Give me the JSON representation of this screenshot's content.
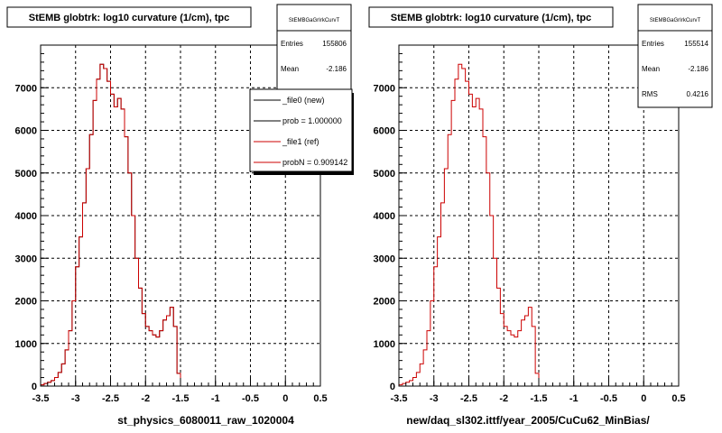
{
  "footer_text": "",
  "chart_data": [
    {
      "type": "histogram",
      "title": "StEMB globtrk: log10 curvature (1/cm), tpc",
      "xlabel": "st_physics_6080011_raw_1020004",
      "xlim": [
        -3.5,
        0.5
      ],
      "ylim": [
        0,
        8000
      ],
      "x_ticks": [
        -3.5,
        -3,
        -2.5,
        -2,
        -1.5,
        -1,
        -0.5,
        0,
        0.5
      ],
      "y_ticks": [
        0,
        1000,
        2000,
        3000,
        4000,
        5000,
        6000,
        7000
      ],
      "grid": true,
      "bin_start": -3.5,
      "bin_width": 0.05,
      "stats_box": {
        "name": "StEMBGaGrIrkCurvT",
        "rows": [
          {
            "label": "Entries",
            "value": "155806"
          },
          {
            "label": "Mean",
            "value": "-2.186"
          }
        ]
      },
      "legend": {
        "placement": "top-right",
        "entries": [
          {
            "label": "_file0 (new)",
            "color": "#000000"
          },
          {
            "label": "prob = 1.000000",
            "color": "#000000"
          },
          {
            "label": "_file1 (ref)",
            "color": "#cc0000"
          },
          {
            "label": "probN = 0.909142",
            "color": "#cc0000"
          }
        ]
      },
      "series": [
        {
          "name": "_file0 (new)",
          "color": "#000000",
          "values": [
            30,
            60,
            90,
            130,
            200,
            320,
            520,
            850,
            1300,
            2000,
            2800,
            3500,
            4300,
            5100,
            5900,
            6700,
            7200,
            7550,
            7450,
            7150,
            6850,
            6550,
            6750,
            6500,
            5850,
            5000,
            4000,
            3000,
            2300,
            1700,
            1400,
            1300,
            1200,
            1150,
            1300,
            1550,
            1650,
            1850,
            1400,
            300,
            0,
            0,
            0,
            0,
            0,
            0,
            0,
            0,
            0,
            0,
            0,
            0,
            0,
            0,
            0,
            0,
            0,
            0,
            0,
            0,
            0,
            0,
            0,
            0,
            0,
            0,
            0,
            0,
            0,
            0,
            0,
            0,
            0,
            0,
            0,
            0,
            0,
            0,
            0,
            0
          ]
        },
        {
          "name": "_file1 (ref)",
          "color": "#cc0000",
          "values": [
            30,
            60,
            90,
            130,
            200,
            320,
            520,
            850,
            1300,
            2000,
            2800,
            3500,
            4300,
            5100,
            5900,
            6700,
            7200,
            7550,
            7450,
            7150,
            6850,
            6550,
            6750,
            6500,
            5850,
            5000,
            4000,
            3000,
            2300,
            1700,
            1400,
            1300,
            1200,
            1150,
            1300,
            1550,
            1650,
            1850,
            1400,
            300,
            0,
            0,
            0,
            0,
            0,
            0,
            0,
            0,
            0,
            0,
            0,
            0,
            0,
            0,
            0,
            0,
            0,
            0,
            0,
            0,
            0,
            0,
            0,
            0,
            0,
            0,
            0,
            0,
            0,
            0,
            0,
            0,
            0,
            0,
            0,
            0,
            0,
            0,
            0,
            0
          ]
        }
      ]
    },
    {
      "type": "histogram",
      "title": "StEMB globtrk: log10 curvature (1/cm), tpc",
      "xlabel": "new/daq_sl302.ittf/year_2005/CuCu62_MinBias/",
      "xlim": [
        -3.5,
        0.5
      ],
      "ylim": [
        0,
        8000
      ],
      "x_ticks": [
        -3.5,
        -3,
        -2.5,
        -2,
        -1.5,
        -1,
        -0.5,
        0,
        0.5
      ],
      "y_ticks": [
        0,
        1000,
        2000,
        3000,
        4000,
        5000,
        6000,
        7000
      ],
      "grid": true,
      "bin_start": -3.5,
      "bin_width": 0.05,
      "stats_box": {
        "name": "StEMBGaGrIrkCurvT",
        "rows": [
          {
            "label": "Entries",
            "value": "155514"
          },
          {
            "label": "Mean",
            "value": "-2.186"
          },
          {
            "label": "RMS",
            "value": "0.4216"
          }
        ]
      },
      "series": [
        {
          "name": "_file1 (ref)",
          "color": "#cc0000",
          "values": [
            30,
            60,
            90,
            130,
            200,
            320,
            520,
            850,
            1300,
            2000,
            2800,
            3500,
            4300,
            5100,
            5900,
            6700,
            7200,
            7550,
            7450,
            7150,
            6850,
            6550,
            6750,
            6500,
            5850,
            5000,
            4000,
            3000,
            2300,
            1700,
            1400,
            1300,
            1200,
            1150,
            1300,
            1550,
            1650,
            1850,
            1400,
            300,
            0,
            0,
            0,
            0,
            0,
            0,
            0,
            0,
            0,
            0,
            0,
            0,
            0,
            0,
            0,
            0,
            0,
            0,
            0,
            0,
            0,
            0,
            0,
            0,
            0,
            0,
            0,
            0,
            0,
            0,
            0,
            0,
            0,
            0,
            0,
            0,
            0,
            0,
            0,
            0
          ]
        }
      ]
    }
  ]
}
